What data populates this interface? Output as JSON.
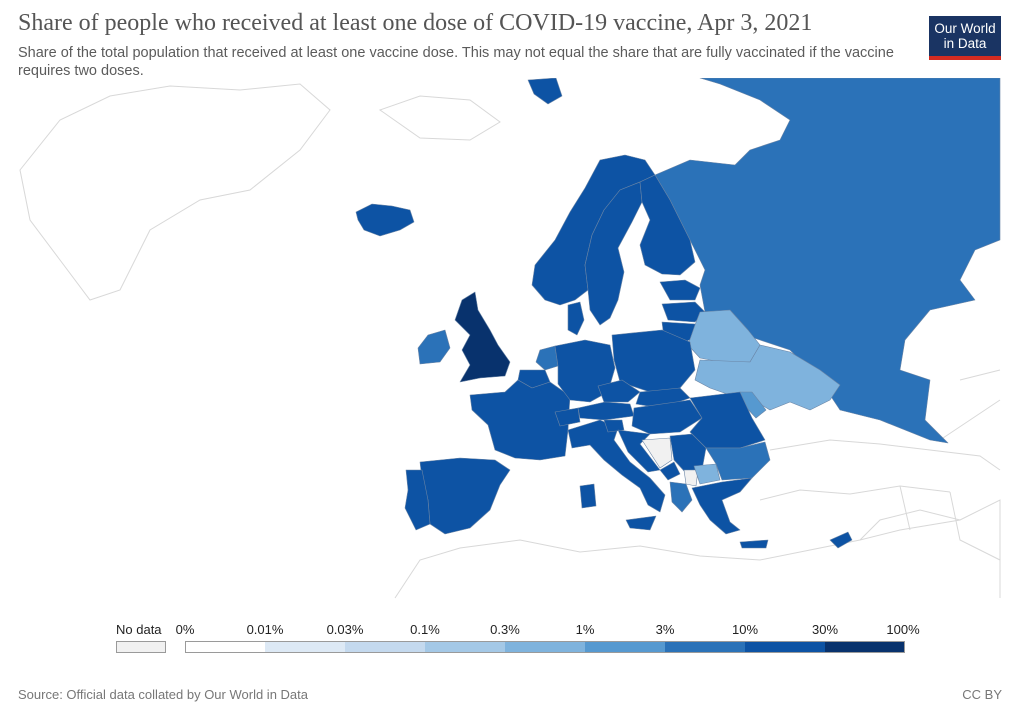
{
  "header": {
    "title": "Share of people who received at least one dose of COVID-19 vaccine, Apr 3, 2021",
    "subtitle": "Share of the total population that received at least one vaccine dose. This may not equal the share that are fully vaccinated if the vaccine requires two doses."
  },
  "logo": {
    "line1": "Our World",
    "line2": "in Data",
    "bg_color": "#1a3463",
    "accent_color": "#d42b21"
  },
  "legend": {
    "no_data_label": "No data",
    "no_data_color": "#f1f1f1",
    "ticks": [
      "0%",
      "0.01%",
      "0.03%",
      "0.1%",
      "0.3%",
      "1%",
      "3%",
      "10%",
      "30%",
      "100%"
    ],
    "bin_colors": [
      "#ffffff",
      "#dde9f5",
      "#c4d9ee",
      "#a4c8e6",
      "#7fb3dd",
      "#5699d0",
      "#2b72b8",
      "#0d53a4",
      "#08326d"
    ]
  },
  "map": {
    "land_color": "#ffffff",
    "border_color": "#d5d5d5",
    "regions": [
      {
        "name": "United Kingdom",
        "color": "#08326d"
      },
      {
        "name": "Ireland",
        "color": "#2b72b8"
      },
      {
        "name": "Iceland",
        "color": "#0d53a4"
      },
      {
        "name": "Norway",
        "color": "#0d53a4"
      },
      {
        "name": "Sweden",
        "color": "#0d53a4"
      },
      {
        "name": "Finland",
        "color": "#0d53a4"
      },
      {
        "name": "Russia",
        "color": "#2b72b8"
      },
      {
        "name": "Estonia",
        "color": "#0d53a4"
      },
      {
        "name": "Latvia",
        "color": "#0d53a4"
      },
      {
        "name": "Lithuania",
        "color": "#0d53a4"
      },
      {
        "name": "Belarus",
        "color": "#7fb3dd"
      },
      {
        "name": "Ukraine",
        "color": "#7fb3dd"
      },
      {
        "name": "Moldova",
        "color": "#5699d0"
      },
      {
        "name": "Denmark",
        "color": "#0d53a4"
      },
      {
        "name": "Netherlands",
        "color": "#2b72b8"
      },
      {
        "name": "Belgium",
        "color": "#0d53a4"
      },
      {
        "name": "France",
        "color": "#0d53a4"
      },
      {
        "name": "Spain",
        "color": "#0d53a4"
      },
      {
        "name": "Portugal",
        "color": "#0d53a4"
      },
      {
        "name": "Germany",
        "color": "#0d53a4"
      },
      {
        "name": "Poland",
        "color": "#0d53a4"
      },
      {
        "name": "Czechia",
        "color": "#0d53a4"
      },
      {
        "name": "Slovakia",
        "color": "#0d53a4"
      },
      {
        "name": "Austria",
        "color": "#0d53a4"
      },
      {
        "name": "Switzerland",
        "color": "#0d53a4"
      },
      {
        "name": "Italy",
        "color": "#0d53a4"
      },
      {
        "name": "Hungary",
        "color": "#0d53a4"
      },
      {
        "name": "Romania",
        "color": "#0d53a4"
      },
      {
        "name": "Slovenia",
        "color": "#0d53a4"
      },
      {
        "name": "Croatia",
        "color": "#0d53a4"
      },
      {
        "name": "Serbia",
        "color": "#0d53a4"
      },
      {
        "name": "Bosnia and Herzegovina",
        "color": "#f1f1f1"
      },
      {
        "name": "Montenegro",
        "color": "#0d53a4"
      },
      {
        "name": "Kosovo",
        "color": "#f1f1f1"
      },
      {
        "name": "Albania",
        "color": "#2b72b8"
      },
      {
        "name": "North Macedonia",
        "color": "#7fb3dd"
      },
      {
        "name": "Bulgaria",
        "color": "#2b72b8"
      },
      {
        "name": "Greece",
        "color": "#0d53a4"
      },
      {
        "name": "Cyprus",
        "color": "#0d53a4"
      },
      {
        "name": "Svalbard",
        "color": "#0d53a4"
      }
    ]
  },
  "footer": {
    "source": "Source: Official data collated by Our World in Data",
    "license": "CC BY"
  }
}
